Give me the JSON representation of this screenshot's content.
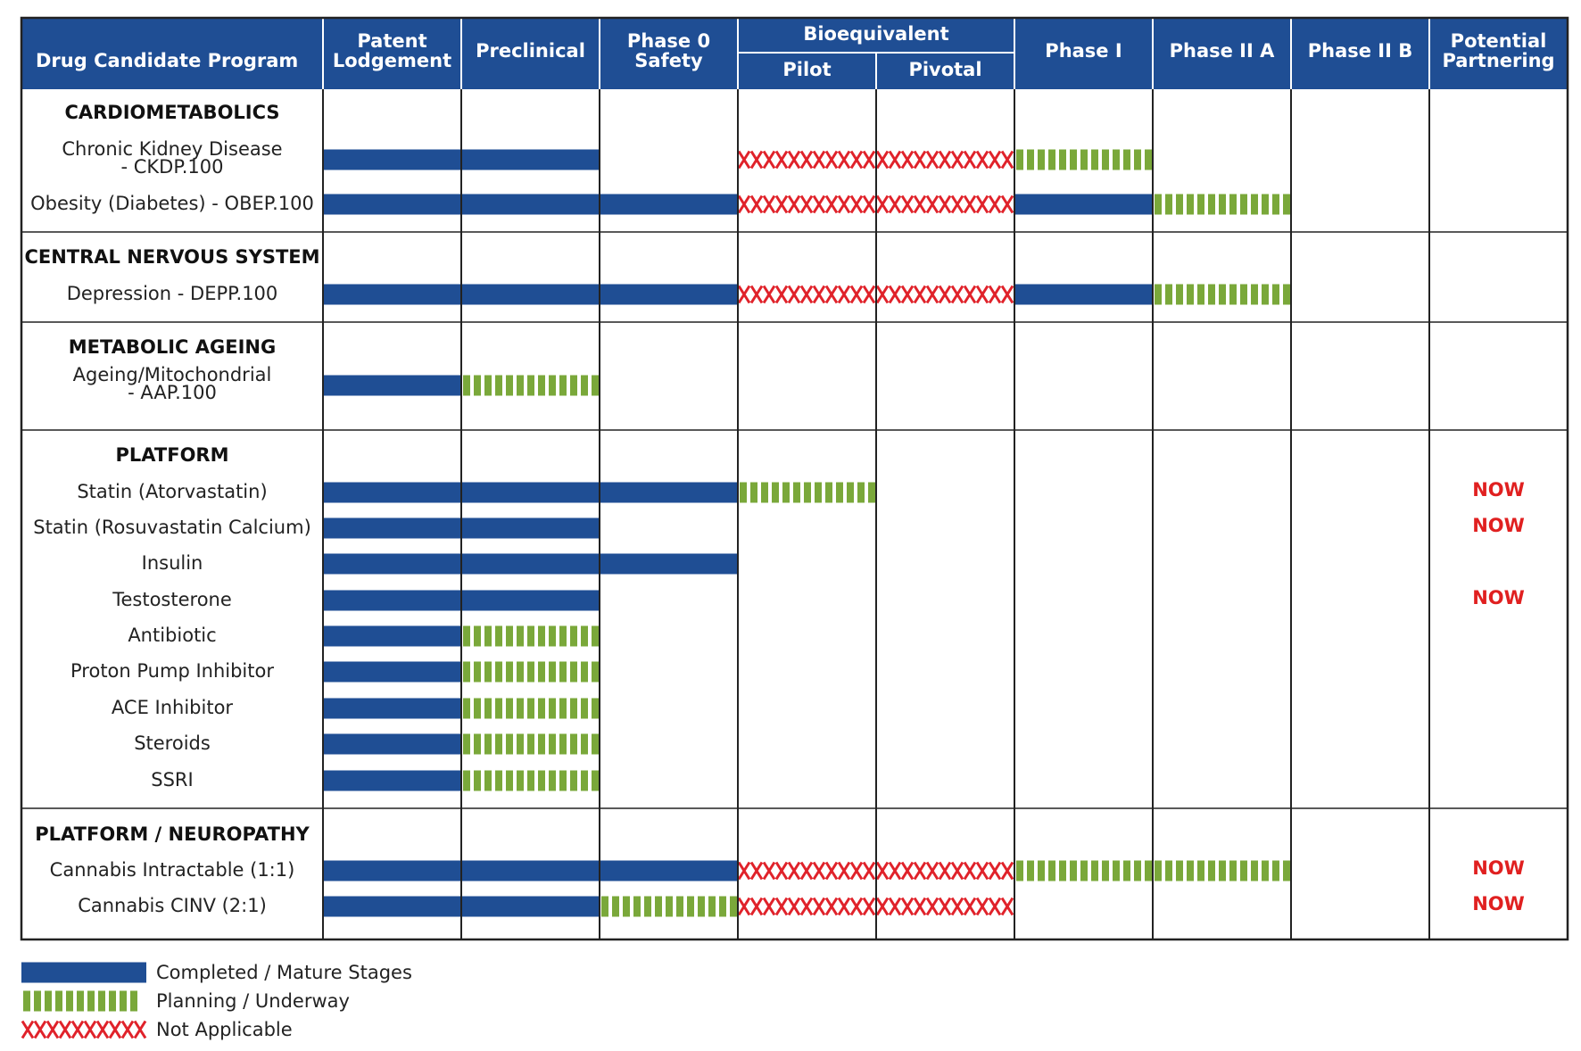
{
  "colors": {
    "header_bg": "#1f4e94",
    "completed": "#1f4e94",
    "underway": "#7aa83a",
    "not_applicable": "#e0222a",
    "now": "#e02020",
    "grid": "#222222"
  },
  "header": {
    "program": "Drug Candidate Program",
    "stages": [
      [
        "Patent",
        "Lodgement"
      ],
      [
        "Preclinical"
      ],
      [
        "Phase 0",
        "Safety"
      ],
      [
        "Pilot"
      ],
      [
        "Pivotal"
      ],
      [
        "Phase I"
      ],
      [
        "Phase II A"
      ],
      [
        "Phase II B"
      ],
      [
        "Potential",
        "Partnering"
      ]
    ],
    "group_label": "Bioequivalent"
  },
  "chart_data": {
    "type": "table",
    "stages": [
      "Patent Lodgement",
      "Preclinical",
      "Phase 0 Safety",
      "Bioequivalent Pilot",
      "Bioequivalent Pivotal",
      "Phase I",
      "Phase II A",
      "Phase II B"
    ],
    "status_codes": {
      "C": "Completed / Mature Stages",
      "U": "Planning / Underway",
      "X": "Not Applicable",
      "-": "none"
    },
    "sections": [
      {
        "title": "CARDIOMETABOLICS",
        "rows": [
          {
            "label": [
              "Chronic Kidney Disease",
              "- CKDP.100"
            ],
            "stages": [
              "C",
              "C",
              "-",
              "X",
              "X",
              "U",
              "-",
              "-"
            ],
            "partnering": ""
          },
          {
            "label": [
              "Obesity (Diabetes) - OBEP.100"
            ],
            "stages": [
              "C",
              "C",
              "C",
              "X",
              "X",
              "C",
              "U",
              "-"
            ],
            "partnering": ""
          }
        ]
      },
      {
        "title": "CENTRAL NERVOUS SYSTEM",
        "rows": [
          {
            "label": [
              "Depression - DEPP.100"
            ],
            "stages": [
              "C",
              "C",
              "C",
              "X",
              "X",
              "C",
              "U",
              "-"
            ],
            "partnering": ""
          }
        ]
      },
      {
        "title": "METABOLIC AGEING",
        "rows": [
          {
            "label": [
              "Ageing/Mitochondrial",
              "- AAP.100"
            ],
            "stages": [
              "C",
              "U",
              "-",
              "-",
              "-",
              "-",
              "-",
              "-"
            ],
            "partnering": ""
          }
        ]
      },
      {
        "title": "PLATFORM",
        "rows": [
          {
            "label": [
              "Statin (Atorvastatin)"
            ],
            "stages": [
              "C",
              "C",
              "C",
              "U",
              "-",
              "-",
              "-",
              "-"
            ],
            "partnering": "NOW"
          },
          {
            "label": [
              "Statin (Rosuvastatin Calcium)"
            ],
            "stages": [
              "C",
              "C",
              "-",
              "-",
              "-",
              "-",
              "-",
              "-"
            ],
            "partnering": "NOW"
          },
          {
            "label": [
              "Insulin"
            ],
            "stages": [
              "C",
              "C",
              "C",
              "-",
              "-",
              "-",
              "-",
              "-"
            ],
            "partnering": ""
          },
          {
            "label": [
              "Testosterone"
            ],
            "stages": [
              "C",
              "C",
              "-",
              "-",
              "-",
              "-",
              "-",
              "-"
            ],
            "partnering": "NOW"
          },
          {
            "label": [
              "Antibiotic"
            ],
            "stages": [
              "C",
              "U",
              "-",
              "-",
              "-",
              "-",
              "-",
              "-"
            ],
            "partnering": ""
          },
          {
            "label": [
              "Proton Pump Inhibitor"
            ],
            "stages": [
              "C",
              "U",
              "-",
              "-",
              "-",
              "-",
              "-",
              "-"
            ],
            "partnering": ""
          },
          {
            "label": [
              "ACE Inhibitor"
            ],
            "stages": [
              "C",
              "U",
              "-",
              "-",
              "-",
              "-",
              "-",
              "-"
            ],
            "partnering": ""
          },
          {
            "label": [
              "Steroids"
            ],
            "stages": [
              "C",
              "U",
              "-",
              "-",
              "-",
              "-",
              "-",
              "-"
            ],
            "partnering": ""
          },
          {
            "label": [
              "SSRI"
            ],
            "stages": [
              "C",
              "U",
              "-",
              "-",
              "-",
              "-",
              "-",
              "-"
            ],
            "partnering": ""
          }
        ]
      },
      {
        "title": "PLATFORM / NEUROPATHY",
        "rows": [
          {
            "label": [
              "Cannabis Intractable (1:1)"
            ],
            "stages": [
              "C",
              "C",
              "C",
              "X",
              "X",
              "U",
              "U",
              "-"
            ],
            "partnering": "NOW"
          },
          {
            "label": [
              "Cannabis CINV (2:1)"
            ],
            "stages": [
              "C",
              "C",
              "U",
              "X",
              "X",
              "-",
              "-",
              "-"
            ],
            "partnering": "NOW"
          }
        ]
      }
    ]
  },
  "legend": [
    {
      "status": "C",
      "label": "Completed / Mature Stages"
    },
    {
      "status": "U",
      "label": "Planning / Underway"
    },
    {
      "status": "X",
      "label": "Not Applicable"
    }
  ]
}
